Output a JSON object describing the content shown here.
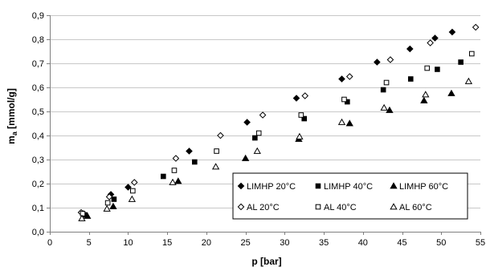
{
  "chart_data": {
    "type": "scatter",
    "title": "",
    "xlabel": "p [bar]",
    "ylabel_main": "m",
    "ylabel_sub": "a",
    "ylabel_unit": " [mmol/g]",
    "xlim": [
      0,
      55
    ],
    "ylim": [
      0,
      0.9
    ],
    "x_ticks": [
      0,
      5,
      10,
      15,
      20,
      25,
      30,
      35,
      40,
      45,
      50,
      55
    ],
    "x_tick_labels": [
      "0",
      "5",
      "10",
      "15",
      "20",
      "25",
      "30",
      "35",
      "40",
      "45",
      "50",
      "55"
    ],
    "y_ticks": [
      0,
      0.1,
      0.2,
      0.3,
      0.4,
      0.5,
      0.6,
      0.7,
      0.8,
      0.9
    ],
    "y_tick_labels": [
      "0,0",
      "0,1",
      "0,2",
      "0,3",
      "0,4",
      "0,5",
      "0,6",
      "0,7",
      "0,8",
      "0,9"
    ],
    "grid": "horizontal",
    "legend_position": "bottom-right",
    "series": [
      {
        "name": "LIMHP 20°C",
        "marker": "diamond",
        "filled": true,
        "color": "#000000",
        "points": [
          [
            4.3,
            0.075
          ],
          [
            7.8,
            0.155
          ],
          [
            10.0,
            0.185
          ],
          [
            17.8,
            0.335
          ],
          [
            25.2,
            0.455
          ],
          [
            31.5,
            0.555
          ],
          [
            37.3,
            0.635
          ],
          [
            41.8,
            0.705
          ],
          [
            46.0,
            0.76
          ],
          [
            49.2,
            0.805
          ],
          [
            51.4,
            0.83
          ]
        ]
      },
      {
        "name": "LIMHP 40°C",
        "marker": "square",
        "filled": true,
        "color": "#000000",
        "points": [
          [
            4.5,
            0.07
          ],
          [
            8.2,
            0.135
          ],
          [
            14.5,
            0.23
          ],
          [
            18.5,
            0.29
          ],
          [
            26.2,
            0.39
          ],
          [
            32.5,
            0.47
          ],
          [
            38.0,
            0.54
          ],
          [
            42.6,
            0.59
          ],
          [
            46.1,
            0.635
          ],
          [
            49.5,
            0.675
          ],
          [
            52.5,
            0.705
          ]
        ]
      },
      {
        "name": "LIMHP 60°C",
        "marker": "triangle",
        "filled": true,
        "color": "#000000",
        "points": [
          [
            4.8,
            0.065
          ],
          [
            8.1,
            0.105
          ],
          [
            16.4,
            0.21
          ],
          [
            25.0,
            0.305
          ],
          [
            31.8,
            0.385
          ],
          [
            38.3,
            0.45
          ],
          [
            43.4,
            0.505
          ],
          [
            47.8,
            0.545
          ],
          [
            51.3,
            0.575
          ]
        ]
      },
      {
        "name": "AL 20°C",
        "marker": "diamond",
        "filled": false,
        "color": "#000000",
        "points": [
          [
            4.0,
            0.08
          ],
          [
            7.6,
            0.145
          ],
          [
            10.8,
            0.205
          ],
          [
            16.1,
            0.305
          ],
          [
            21.8,
            0.4
          ],
          [
            27.2,
            0.485
          ],
          [
            32.6,
            0.565
          ],
          [
            38.3,
            0.645
          ],
          [
            43.5,
            0.715
          ],
          [
            48.6,
            0.785
          ],
          [
            54.4,
            0.85
          ]
        ]
      },
      {
        "name": "AL 40°C",
        "marker": "square",
        "filled": false,
        "color": "#000000",
        "points": [
          [
            4.2,
            0.075
          ],
          [
            7.4,
            0.12
          ],
          [
            10.6,
            0.17
          ],
          [
            15.9,
            0.255
          ],
          [
            21.3,
            0.335
          ],
          [
            26.7,
            0.41
          ],
          [
            32.1,
            0.485
          ],
          [
            37.6,
            0.55
          ],
          [
            43.0,
            0.62
          ],
          [
            48.2,
            0.68
          ],
          [
            53.9,
            0.74
          ]
        ]
      },
      {
        "name": "AL 60°C",
        "marker": "triangle",
        "filled": false,
        "color": "#000000",
        "points": [
          [
            4.1,
            0.055
          ],
          [
            7.3,
            0.095
          ],
          [
            10.5,
            0.135
          ],
          [
            15.7,
            0.205
          ],
          [
            21.2,
            0.27
          ],
          [
            26.5,
            0.335
          ],
          [
            31.9,
            0.395
          ],
          [
            37.3,
            0.455
          ],
          [
            42.7,
            0.515
          ],
          [
            48.0,
            0.57
          ],
          [
            53.5,
            0.625
          ]
        ]
      }
    ]
  }
}
